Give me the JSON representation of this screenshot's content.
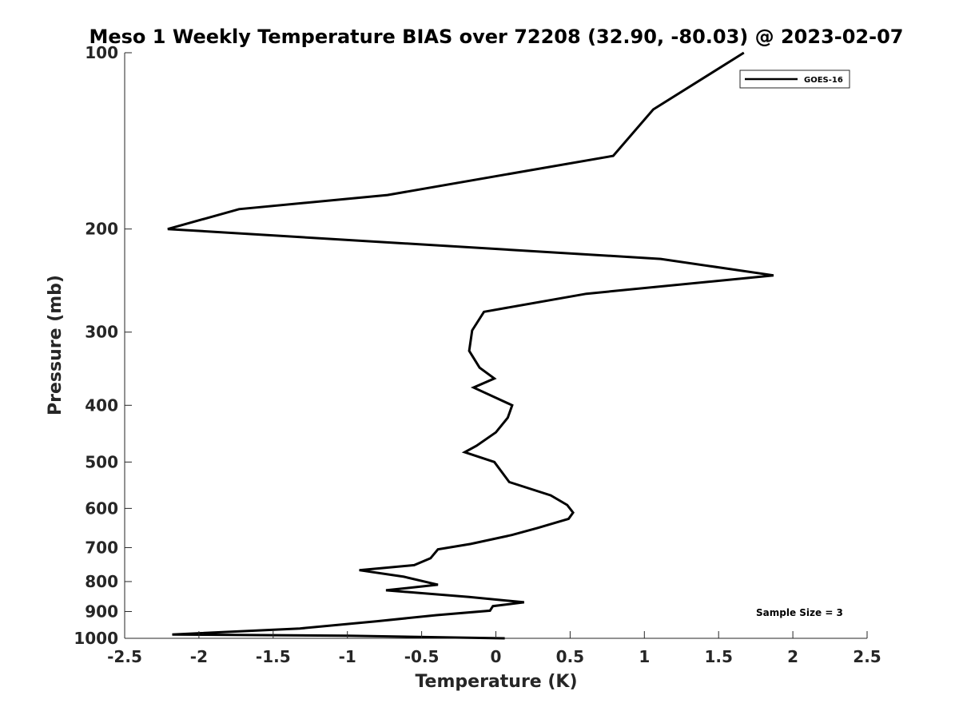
{
  "chart_data": {
    "type": "line",
    "title": "Meso 1 Weekly Temperature BIAS over 72208 (32.90, -80.03) @ 2023-02-07",
    "xlabel": "Temperature (K)",
    "ylabel": "Pressure (mb)",
    "xlim": [
      -2.5,
      2.5
    ],
    "ylim": [
      100,
      1000
    ],
    "y_scale": "log",
    "y_reversed": true,
    "xticks": [
      -2.5,
      -2,
      -1.5,
      -1,
      -0.5,
      0,
      0.5,
      1,
      1.5,
      2,
      2.5
    ],
    "xtick_labels": [
      "-2.5",
      "-2",
      "-1.5",
      "-1",
      "-0.5",
      "0",
      "0.5",
      "1",
      "1.5",
      "2",
      "2.5"
    ],
    "yticks": [
      100,
      200,
      300,
      400,
      500,
      600,
      700,
      800,
      900,
      1000
    ],
    "ytick_labels": [
      "100",
      "200",
      "300",
      "400",
      "500",
      "600",
      "700",
      "800",
      "900",
      "1000"
    ],
    "grid": false,
    "legend_position": "top-right",
    "annotation": "Sample Size = 3",
    "series": [
      {
        "name": "GOES-16",
        "color": "#000000",
        "points": [
          [
            1.67,
            100
          ],
          [
            1.06,
            125
          ],
          [
            0.79,
            150
          ],
          [
            -0.73,
            175
          ],
          [
            -1.73,
            185
          ],
          [
            -2.21,
            200
          ],
          [
            1.11,
            225
          ],
          [
            1.87,
            240
          ],
          [
            0.61,
            258
          ],
          [
            -0.08,
            277
          ],
          [
            -0.16,
            298
          ],
          [
            -0.18,
            323
          ],
          [
            -0.11,
            345
          ],
          [
            -0.01,
            360
          ],
          [
            -0.15,
            373
          ],
          [
            0.11,
            400
          ],
          [
            0.08,
            420
          ],
          [
            0.0,
            445
          ],
          [
            -0.13,
            469
          ],
          [
            -0.21,
            481
          ],
          [
            -0.01,
            500
          ],
          [
            0.09,
            541
          ],
          [
            0.37,
            570
          ],
          [
            0.48,
            592
          ],
          [
            0.52,
            610
          ],
          [
            0.49,
            625
          ],
          [
            0.28,
            648
          ],
          [
            0.11,
            666
          ],
          [
            -0.17,
            690
          ],
          [
            -0.39,
            705
          ],
          [
            -0.44,
            730
          ],
          [
            -0.55,
            750
          ],
          [
            -0.92,
            765
          ],
          [
            -0.62,
            785
          ],
          [
            -0.39,
            810
          ],
          [
            -0.74,
            828
          ],
          [
            -0.18,
            850
          ],
          [
            0.19,
            868
          ],
          [
            -0.02,
            881
          ],
          [
            -0.04,
            897
          ],
          [
            -0.4,
            913
          ],
          [
            -0.8,
            935
          ],
          [
            -1.32,
            962
          ],
          [
            -2.18,
            985
          ],
          [
            -1.0,
            990
          ],
          [
            0.06,
            1000
          ]
        ]
      }
    ]
  }
}
